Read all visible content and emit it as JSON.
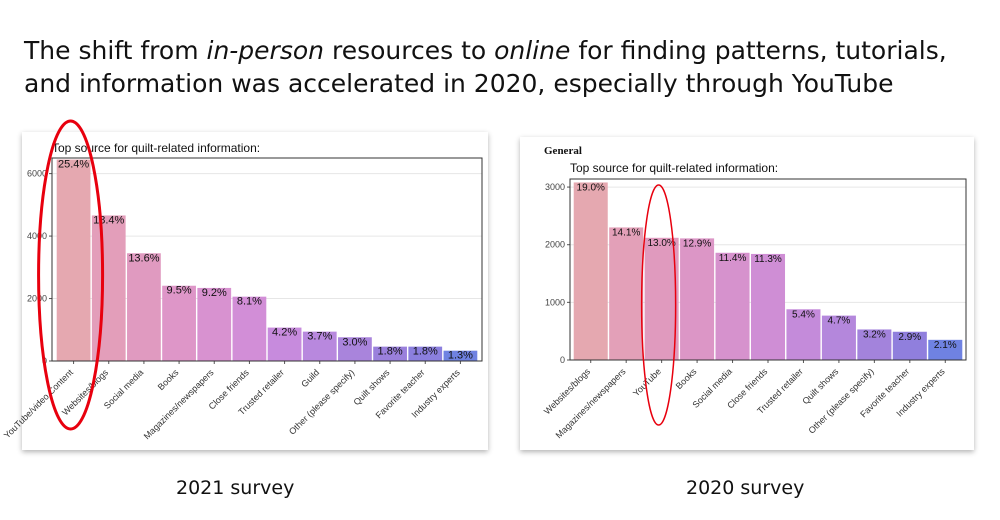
{
  "slide": {
    "title_parts": [
      {
        "text": "The shift from ",
        "italic": false
      },
      {
        "text": "in-person",
        "italic": true
      },
      {
        "text": " resources to ",
        "italic": false
      },
      {
        "text": "online",
        "italic": true
      },
      {
        "text": " for finding patterns, tutorials, and information was accelerated in 2020, especially through YouTube",
        "italic": false
      }
    ],
    "caption_left": "2021 survey",
    "caption_right": "2020 survey",
    "highlight_color": "#e8000e"
  },
  "chart_data": [
    {
      "type": "bar",
      "title": "Top source for quilt-related information:",
      "panel_header": "",
      "categories": [
        "YouTube/video Content",
        "Websites/blogs",
        "Social media",
        "Books",
        "Magazines/newspapers",
        "Close friends",
        "Trusted retailer",
        "Guild",
        "Other (please specify)",
        "Quilt shows",
        "Favorite teacher",
        "Industry experts"
      ],
      "values": [
        6450,
        4660,
        3450,
        2410,
        2340,
        2060,
        1070,
        940,
        760,
        460,
        460,
        330
      ],
      "labels": [
        "25.4%",
        "18.4%",
        "13.6%",
        "9.5%",
        "9.2%",
        "8.1%",
        "4.2%",
        "3.7%",
        "3.0%",
        "1.8%",
        "1.8%",
        "1.3%"
      ],
      "yticks": [
        0,
        2000,
        4000,
        6000
      ],
      "ylim": [
        0,
        6500
      ],
      "colors": [
        "#e5a8b0",
        "#e39eba",
        "#e09ac0",
        "#de96c8",
        "#d892d0",
        "#d28ed7",
        "#c78bdd",
        "#b888de",
        "#a984dc",
        "#9a80dc",
        "#8b7fde",
        "#6f82e2"
      ],
      "grid": true,
      "highlight": "YouTube/video Content"
    },
    {
      "type": "bar",
      "title": "Top source for quilt-related information:",
      "panel_header": "General",
      "categories": [
        "Websites/blogs",
        "Magazines/newspapers",
        "YouTube",
        "Books",
        "Social media",
        "Close friends",
        "Trusted retailer",
        "Quilt shows",
        "Other (please specify)",
        "Favorite teacher",
        "Industry experts"
      ],
      "values": [
        3080,
        2300,
        2120,
        2110,
        1860,
        1840,
        880,
        770,
        530,
        490,
        350
      ],
      "labels": [
        "19.0%",
        "14.1%",
        "13.0%",
        "12.9%",
        "11.4%",
        "11.3%",
        "5.4%",
        "4.7%",
        "3.2%",
        "2.9%",
        "2.1%"
      ],
      "yticks": [
        0,
        1000,
        2000,
        3000
      ],
      "ylim": [
        0,
        3140
      ],
      "colors": [
        "#e5a8b0",
        "#e3a0b8",
        "#e09abe",
        "#dc96c6",
        "#d692cd",
        "#cf8ed5",
        "#c48bda",
        "#b487dc",
        "#a383dc",
        "#907fdd",
        "#6f82e2"
      ],
      "grid": true,
      "highlight": "YouTube"
    }
  ]
}
